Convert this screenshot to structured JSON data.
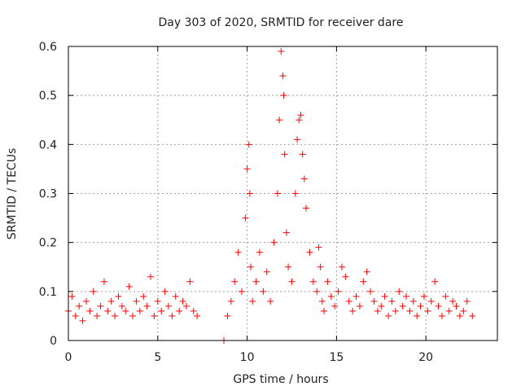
{
  "chart_data": {
    "type": "scatter",
    "title": "Day 303 of 2020, SRMTID for receiver dare",
    "xlabel": "GPS time / hours",
    "ylabel": "SRMTID / TECUs",
    "xlim": [
      0,
      24
    ],
    "ylim": [
      0,
      0.6
    ],
    "xticks": [
      0,
      5,
      10,
      15,
      20
    ],
    "yticks": [
      0,
      0.1,
      0.2,
      0.3,
      0.4,
      0.5,
      0.6
    ],
    "xtick_labels": [
      "0",
      "5",
      "10",
      "15",
      "20"
    ],
    "ytick_labels": [
      "0",
      "0.1",
      "0.2",
      "0.3",
      "0.4",
      "0.5",
      "0.6"
    ],
    "grid": true,
    "marker": "+",
    "series": [
      {
        "name": "SRMTID",
        "color": "#ff0000",
        "x": [
          0.0,
          0.2,
          0.4,
          0.6,
          0.8,
          1.0,
          1.2,
          1.4,
          1.6,
          1.8,
          2.0,
          2.2,
          2.4,
          2.6,
          2.8,
          3.0,
          3.2,
          3.4,
          3.6,
          3.8,
          4.0,
          4.2,
          4.4,
          4.6,
          4.8,
          5.0,
          5.2,
          5.4,
          5.6,
          5.8,
          6.0,
          6.2,
          6.4,
          6.6,
          6.8,
          7.0,
          7.2,
          8.7,
          8.9,
          9.1,
          9.3,
          9.5,
          9.7,
          9.9,
          10.0,
          10.1,
          10.15,
          10.2,
          10.3,
          10.5,
          10.7,
          10.9,
          11.1,
          11.3,
          11.5,
          11.7,
          11.8,
          11.9,
          12.0,
          12.05,
          12.1,
          12.2,
          12.3,
          12.5,
          12.7,
          12.8,
          12.9,
          13.0,
          13.1,
          13.2,
          13.3,
          13.5,
          13.7,
          13.9,
          14.0,
          14.1,
          14.2,
          14.3,
          14.5,
          14.7,
          14.9,
          15.1,
          15.3,
          15.5,
          15.7,
          15.9,
          16.1,
          16.3,
          16.5,
          16.7,
          16.9,
          17.1,
          17.3,
          17.5,
          17.7,
          17.9,
          18.1,
          18.3,
          18.5,
          18.7,
          18.9,
          19.1,
          19.3,
          19.5,
          19.7,
          19.9,
          20.1,
          20.3,
          20.5,
          20.7,
          20.9,
          21.1,
          21.3,
          21.5,
          21.7,
          21.9,
          22.1,
          22.3,
          22.6
        ],
        "y": [
          0.06,
          0.09,
          0.05,
          0.07,
          0.04,
          0.08,
          0.06,
          0.1,
          0.05,
          0.07,
          0.12,
          0.06,
          0.08,
          0.05,
          0.09,
          0.07,
          0.06,
          0.11,
          0.05,
          0.08,
          0.06,
          0.09,
          0.07,
          0.13,
          0.05,
          0.08,
          0.06,
          0.1,
          0.07,
          0.05,
          0.09,
          0.06,
          0.08,
          0.07,
          0.12,
          0.06,
          0.05,
          0.0,
          0.05,
          0.08,
          0.12,
          0.18,
          0.1,
          0.25,
          0.35,
          0.4,
          0.3,
          0.15,
          0.08,
          0.12,
          0.18,
          0.1,
          0.14,
          0.08,
          0.2,
          0.3,
          0.45,
          0.59,
          0.54,
          0.5,
          0.38,
          0.22,
          0.15,
          0.12,
          0.3,
          0.41,
          0.45,
          0.46,
          0.38,
          0.33,
          0.27,
          0.18,
          0.12,
          0.1,
          0.19,
          0.15,
          0.08,
          0.06,
          0.12,
          0.09,
          0.07,
          0.1,
          0.15,
          0.13,
          0.08,
          0.06,
          0.09,
          0.07,
          0.12,
          0.14,
          0.1,
          0.08,
          0.06,
          0.07,
          0.09,
          0.05,
          0.08,
          0.06,
          0.1,
          0.07,
          0.09,
          0.06,
          0.08,
          0.05,
          0.07,
          0.09,
          0.06,
          0.08,
          0.12,
          0.07,
          0.05,
          0.09,
          0.06,
          0.08,
          0.07,
          0.05,
          0.06,
          0.08,
          0.05
        ]
      }
    ]
  }
}
